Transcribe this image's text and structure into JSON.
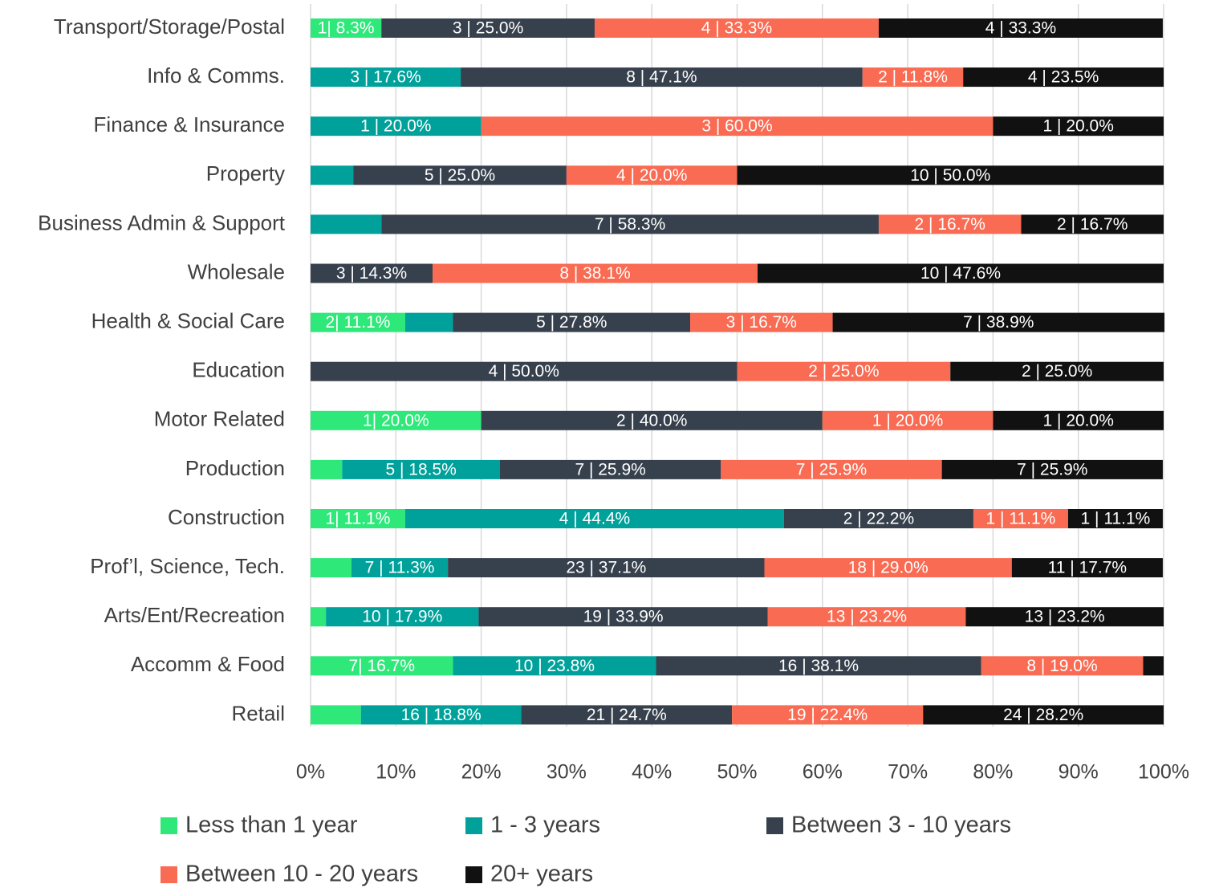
{
  "chart_data": {
    "type": "bar",
    "orientation": "horizontal",
    "stacked": true,
    "categories": [
      "Transport/Storage/Postal",
      "Info & Comms.",
      "Finance & Insurance",
      "Property",
      "Business Admin & Support",
      "Wholesale",
      "Health & Social Care",
      "Education",
      "Motor Related",
      "Production",
      "Construction",
      "Prof’l, Science, Tech.",
      "Arts/Ent/Recreation",
      "Accomm & Food",
      "Retail"
    ],
    "series": [
      {
        "name": "Less than 1 year",
        "color": "#2ee87a",
        "values": [
          8.3,
          0,
          0,
          0,
          0,
          0,
          11.1,
          0,
          20.0,
          3.7,
          11.1,
          4.8,
          1.8,
          16.7,
          5.9
        ],
        "value_labels": [
          "1| 8.3%",
          null,
          null,
          null,
          null,
          null,
          "2| 11.1%",
          null,
          "1| 20.0%",
          null,
          "1| 11.1%",
          null,
          null,
          "7| 16.7%",
          null
        ]
      },
      {
        "name": "1 - 3 years",
        "color": "#00a19b",
        "values": [
          0,
          17.6,
          20.0,
          5.0,
          8.3,
          0,
          5.6,
          0,
          0,
          18.5,
          44.4,
          11.3,
          17.9,
          23.8,
          18.8
        ],
        "value_labels": [
          null,
          "3 | 17.6%",
          "1 | 20.0%",
          null,
          null,
          null,
          null,
          null,
          null,
          "5 | 18.5%",
          "4 | 44.4%",
          "7 | 11.3%",
          "10 | 17.9%",
          "10 | 23.8%",
          "16 | 18.8%"
        ]
      },
      {
        "name": "Between 3 - 10 years",
        "color": "#37414d",
        "values": [
          25.0,
          47.1,
          0,
          25.0,
          58.3,
          14.3,
          27.8,
          50.0,
          40.0,
          25.9,
          22.2,
          37.1,
          33.9,
          38.1,
          24.7
        ],
        "value_labels": [
          "3 | 25.0%",
          "8 | 47.1%",
          null,
          "5 | 25.0%",
          "7 | 58.3%",
          "3 | 14.3%",
          "5 | 27.8%",
          "4 | 50.0%",
          "2 | 40.0%",
          "7 | 25.9%",
          "2 | 22.2%",
          "23 | 37.1%",
          "19 | 33.9%",
          "16 | 38.1%",
          "21 | 24.7%"
        ]
      },
      {
        "name": "Between 10 - 20 years",
        "color": "#f96b52",
        "values": [
          33.3,
          11.8,
          60.0,
          20.0,
          16.7,
          38.1,
          16.7,
          25.0,
          20.0,
          25.9,
          11.1,
          29.0,
          23.2,
          19.0,
          22.4
        ],
        "value_labels": [
          "4 | 33.3%",
          "2 | 11.8%",
          "3 | 60.0%",
          "4 | 20.0%",
          "2 | 16.7%",
          "8 | 38.1%",
          "3 | 16.7%",
          "2 | 25.0%",
          "1 | 20.0%",
          "7 | 25.9%",
          "1 | 11.1%",
          "18 | 29.0%",
          "13 | 23.2%",
          "8 | 19.0%",
          "19 | 22.4%"
        ]
      },
      {
        "name": "20+ years",
        "color": "#111111",
        "values": [
          33.3,
          23.5,
          20.0,
          50.0,
          16.7,
          47.6,
          38.9,
          25.0,
          20.0,
          25.9,
          11.1,
          17.7,
          23.2,
          2.4,
          28.2
        ],
        "value_labels": [
          "4 | 33.3%",
          "4 | 23.5%",
          "1 | 20.0%",
          "10 | 50.0%",
          "2 | 16.7%",
          "10 | 47.6%",
          "7 | 38.9%",
          "2 | 25.0%",
          "1 | 20.0%",
          "7 | 25.9%",
          "1 | 11.1%",
          "11 | 17.7%",
          "13 | 23.2%",
          null,
          "24 | 28.2%"
        ]
      }
    ],
    "xlim": [
      0,
      100
    ],
    "xticks": [
      {
        "value": 0,
        "label": "0%"
      },
      {
        "value": 10,
        "label": "10%"
      },
      {
        "value": 20,
        "label": "20%"
      },
      {
        "value": 30,
        "label": "30%"
      },
      {
        "value": 40,
        "label": "40%"
      },
      {
        "value": 50,
        "label": "50%"
      },
      {
        "value": 60,
        "label": "60%"
      },
      {
        "value": 70,
        "label": "70%"
      },
      {
        "value": 80,
        "label": "80%"
      },
      {
        "value": 90,
        "label": "90%"
      },
      {
        "value": 100,
        "label": "100%"
      }
    ],
    "grid": true,
    "legend": "bottom"
  }
}
